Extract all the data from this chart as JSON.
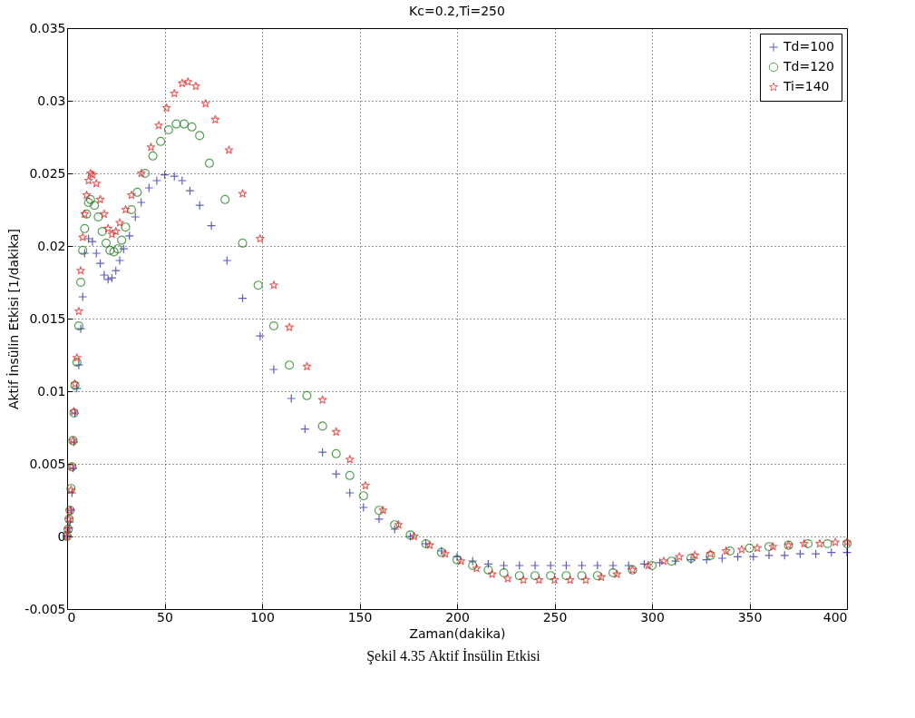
{
  "chart_data": {
    "type": "scatter",
    "title": "Kc=0.2,Ti=250",
    "xlabel": "Zaman(dakika)",
    "ylabel": "Aktif İnsülin Etkisi [1/dakika]",
    "annotations": [
      "Şekil 4.35 Aktif İnsülin Etkisi"
    ],
    "xlim": [
      0,
      400
    ],
    "xticks": [
      0,
      50,
      100,
      150,
      200,
      250,
      300,
      350,
      400
    ],
    "ylim": [
      -0.005,
      0.035
    ],
    "yticks": [
      -0.005,
      0,
      0.005,
      0.01,
      0.015,
      0.02,
      0.025,
      0.03,
      0.035
    ],
    "grid": true,
    "legend": "top right",
    "series": [
      {
        "name": "Td=100",
        "color": "#1c1c9c",
        "marker": "cross",
        "x": [
          0,
          0.5,
          1,
          1.5,
          2,
          2.5,
          3,
          3.5,
          4,
          5,
          6,
          7,
          8,
          9,
          11,
          13,
          15,
          17,
          19,
          21,
          23,
          25,
          27,
          29,
          32,
          35,
          38,
          42,
          46,
          50,
          55,
          59,
          63,
          68,
          74,
          82,
          90,
          99,
          106,
          115,
          122,
          131,
          138,
          145,
          152,
          160,
          168,
          176,
          184,
          192,
          200,
          208,
          216,
          224,
          232,
          240,
          248,
          256,
          264,
          272,
          280,
          288,
          296,
          304,
          312,
          320,
          328,
          336,
          344,
          352,
          360,
          368,
          376,
          384,
          392,
          400
        ],
        "values": [
          0,
          0.0003,
          0.0006,
          0.001,
          0.0018,
          0.003,
          0.0047,
          0.0065,
          0.0085,
          0.0102,
          0.0118,
          0.0143,
          0.0165,
          0.0195,
          0.0205,
          0.0203,
          0.0195,
          0.0188,
          0.018,
          0.0177,
          0.0178,
          0.0183,
          0.019,
          0.0198,
          0.0207,
          0.022,
          0.023,
          0.024,
          0.0245,
          0.0249,
          0.0248,
          0.0245,
          0.0238,
          0.0228,
          0.0214,
          0.019,
          0.0164,
          0.0138,
          0.0115,
          0.0095,
          0.0074,
          0.0058,
          0.0043,
          0.003,
          0.002,
          0.0012,
          0.0005,
          0,
          -0.0005,
          -0.001,
          -0.0014,
          -0.0017,
          -0.0019,
          -0.002,
          -0.002,
          -0.002,
          -0.002,
          -0.002,
          -0.002,
          -0.002,
          -0.002,
          -0.002,
          -0.0019,
          -0.0018,
          -0.0017,
          -0.0016,
          -0.0016,
          -0.0015,
          -0.0014,
          -0.0014,
          -0.0013,
          -0.0013,
          -0.0012,
          -0.0012,
          -0.0011,
          -0.0011
        ]
      },
      {
        "name": "Td=120",
        "color": "#117711",
        "marker": "circle",
        "x": [
          0,
          0.5,
          1,
          1.5,
          2,
          2.5,
          3,
          3.5,
          4,
          5,
          6,
          7,
          8,
          9,
          10,
          11,
          12,
          14,
          16,
          18,
          20,
          22,
          24,
          26,
          28,
          30,
          33,
          36,
          40,
          44,
          48,
          52,
          56,
          60,
          64,
          68,
          73,
          81,
          90,
          98,
          106,
          114,
          123,
          131,
          138,
          145,
          152,
          160,
          168,
          176,
          184,
          192,
          200,
          208,
          216,
          224,
          232,
          240,
          248,
          256,
          264,
          272,
          280,
          290,
          300,
          310,
          320,
          330,
          340,
          350,
          360,
          370,
          380,
          390,
          400
        ],
        "values": [
          0,
          0.0005,
          0.0012,
          0.0018,
          0.0033,
          0.0048,
          0.0066,
          0.0085,
          0.0104,
          0.012,
          0.0145,
          0.0175,
          0.0197,
          0.0212,
          0.0222,
          0.023,
          0.0232,
          0.0228,
          0.022,
          0.021,
          0.0202,
          0.0197,
          0.0196,
          0.0198,
          0.0204,
          0.0213,
          0.0225,
          0.0237,
          0.025,
          0.0262,
          0.0272,
          0.028,
          0.0284,
          0.0284,
          0.0282,
          0.0276,
          0.0257,
          0.0232,
          0.0202,
          0.0173,
          0.0145,
          0.0118,
          0.0097,
          0.0076,
          0.0057,
          0.0042,
          0.0028,
          0.0018,
          0.0008,
          0.0001,
          -0.0005,
          -0.0011,
          -0.0016,
          -0.002,
          -0.0023,
          -0.0025,
          -0.0027,
          -0.0027,
          -0.0027,
          -0.0027,
          -0.0027,
          -0.0027,
          -0.0025,
          -0.0023,
          -0.002,
          -0.0017,
          -0.0015,
          -0.0013,
          -0.001,
          -0.0008,
          -0.0007,
          -0.0006,
          -0.0005,
          -0.0005,
          -0.0005
        ]
      },
      {
        "name": "Ti=140",
        "color": "#dd2222",
        "marker": "star",
        "x": [
          0,
          0.5,
          1,
          1.5,
          2,
          2.5,
          3,
          3.5,
          4,
          5,
          6,
          7,
          8,
          9,
          10,
          11,
          12,
          13,
          15,
          17,
          19,
          21,
          23,
          25,
          27,
          30,
          33,
          38,
          43,
          47,
          51,
          55,
          59,
          62,
          66,
          71,
          76,
          83,
          90,
          99,
          106,
          114,
          123,
          131,
          138,
          145,
          153,
          162,
          170,
          178,
          186,
          194,
          202,
          210,
          218,
          226,
          234,
          242,
          250,
          258,
          266,
          274,
          282,
          290,
          298,
          306,
          314,
          322,
          330,
          338,
          346,
          354,
          362,
          370,
          378,
          386,
          394,
          400
        ],
        "values": [
          0,
          0.0005,
          0.0012,
          0.0018,
          0.0032,
          0.0048,
          0.0066,
          0.0086,
          0.0105,
          0.0123,
          0.0155,
          0.0183,
          0.0206,
          0.0222,
          0.0235,
          0.0245,
          0.025,
          0.0249,
          0.0243,
          0.0232,
          0.0222,
          0.0212,
          0.0208,
          0.021,
          0.0216,
          0.0225,
          0.0235,
          0.025,
          0.0268,
          0.0283,
          0.0295,
          0.0305,
          0.0312,
          0.0313,
          0.031,
          0.0298,
          0.0287,
          0.0266,
          0.0236,
          0.0205,
          0.0173,
          0.0144,
          0.0117,
          0.0094,
          0.0072,
          0.0053,
          0.0035,
          0.0018,
          0.0008,
          0,
          -0.0006,
          -0.0012,
          -0.0017,
          -0.0022,
          -0.0026,
          -0.0029,
          -0.003,
          -0.003,
          -0.003,
          -0.003,
          -0.003,
          -0.0028,
          -0.0026,
          -0.0023,
          -0.002,
          -0.0017,
          -0.0014,
          -0.0013,
          -0.0012,
          -0.001,
          -0.0009,
          -0.0008,
          -0.0007,
          -0.0006,
          -0.0005,
          -0.0005,
          -0.0004,
          -0.0004
        ]
      }
    ]
  }
}
